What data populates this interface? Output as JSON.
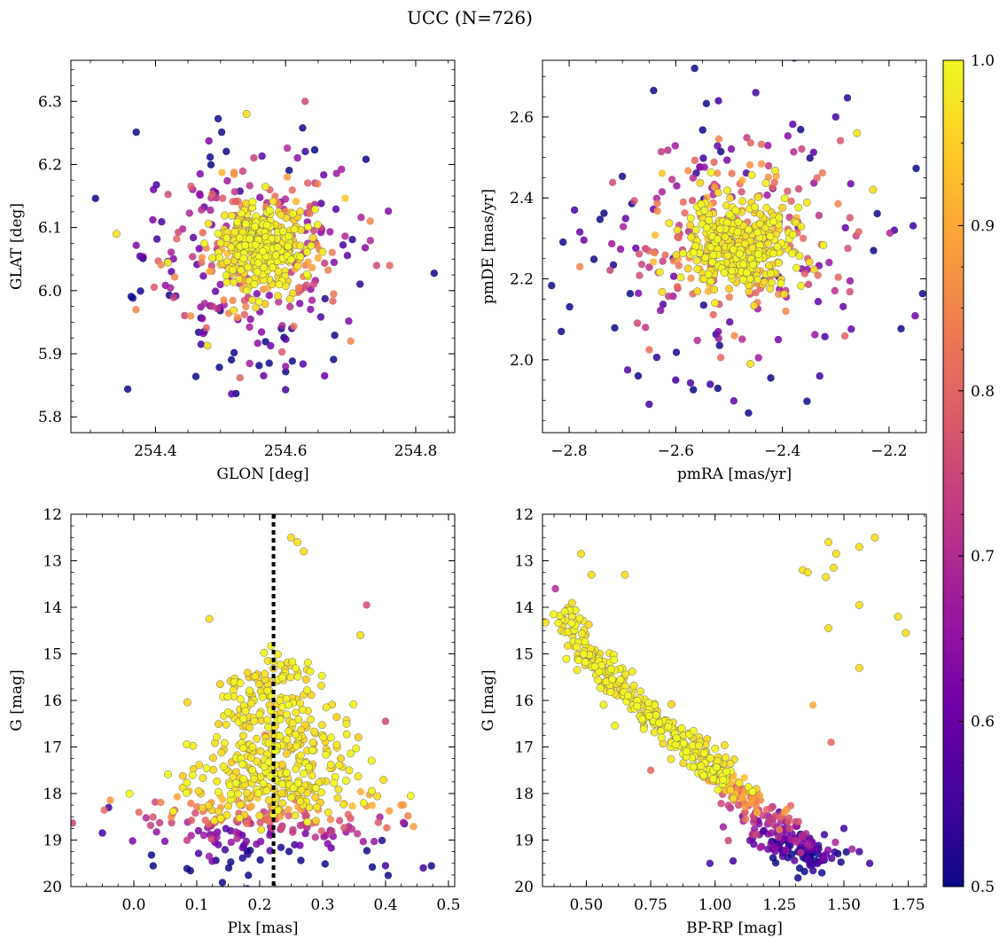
{
  "figure": {
    "title": "UCC (N=726)"
  },
  "colors": {
    "colormap": [
      "#0d0887",
      "#46039f",
      "#7201a8",
      "#9c179e",
      "#bd3786",
      "#d8576b",
      "#ed7953",
      "#fb9f3a",
      "#fdca26",
      "#f0f921"
    ],
    "point_edge": "#6b6b6b",
    "vline": "#000000"
  },
  "colorbar": {
    "min": 0.5,
    "max": 1.0,
    "ticks": [
      "0.5",
      "0.6",
      "0.7",
      "0.8",
      "0.9",
      "1.0"
    ]
  },
  "chart_data": [
    {
      "id": "glon-glat",
      "type": "scatter",
      "xlabel": "GLON [deg]",
      "ylabel": "GLAT [deg]",
      "xlim": [
        254.27,
        254.86
      ],
      "ylim": [
        5.775,
        6.365
      ],
      "xticks": [
        254.4,
        254.6,
        254.8
      ],
      "xtick_labels": [
        "254.4",
        "254.6",
        "254.8"
      ],
      "yticks": [
        5.8,
        5.9,
        6.0,
        6.1,
        6.2,
        6.3
      ],
      "ytick_labels": [
        "5.8",
        "5.9",
        "6.0",
        "6.1",
        "6.2",
        "6.3"
      ],
      "core": {
        "x": 254.56,
        "y": 6.07,
        "sx": 0.035,
        "sy": 0.03,
        "count": 330
      },
      "field": {
        "x": 254.55,
        "y": 6.06,
        "sx": 0.085,
        "sy": 0.085,
        "count": 320
      },
      "points": [
        {
          "x": 254.63,
          "y": 6.3,
          "p": 0.75
        },
        {
          "x": 254.54,
          "y": 6.28,
          "p": 0.97
        },
        {
          "x": 254.6,
          "y": 5.843,
          "p": 0.55
        },
        {
          "x": 254.66,
          "y": 5.865,
          "p": 0.6
        },
        {
          "x": 254.53,
          "y": 5.862,
          "p": 0.8
        },
        {
          "x": 254.74,
          "y": 6.04,
          "p": 0.75
        },
        {
          "x": 254.34,
          "y": 6.09,
          "p": 0.97
        },
        {
          "x": 254.37,
          "y": 5.97,
          "p": 0.85
        },
        {
          "x": 254.47,
          "y": 5.915,
          "p": 0.55
        },
        {
          "x": 254.48,
          "y": 5.913,
          "p": 0.97
        },
        {
          "x": 254.6,
          "y": 5.88,
          "p": 0.65
        },
        {
          "x": 254.7,
          "y": 5.92,
          "p": 0.85
        },
        {
          "x": 254.76,
          "y": 6.04,
          "p": 0.8
        },
        {
          "x": 254.73,
          "y": 6.11,
          "p": 0.85
        }
      ]
    },
    {
      "id": "pmra-pmde",
      "type": "scatter",
      "xlabel": "pmRA [mas/yr]",
      "ylabel": "pmDE [mas/yr]",
      "xlim": [
        -2.85,
        -2.13
      ],
      "ylim": [
        1.82,
        2.74
      ],
      "xticks": [
        -2.8,
        -2.6,
        -2.4,
        -2.2
      ],
      "xtick_labels": [
        "−2.8",
        "−2.6",
        "−2.4",
        "−2.2"
      ],
      "yticks": [
        2.0,
        2.2,
        2.4,
        2.6
      ],
      "ytick_labels": [
        "2.0",
        "2.2",
        "2.4",
        "2.6"
      ],
      "core": {
        "x": -2.48,
        "y": 2.28,
        "sx": 0.05,
        "sy": 0.055,
        "count": 340
      },
      "field": {
        "x": -2.49,
        "y": 2.28,
        "sx": 0.13,
        "sy": 0.16,
        "count": 300
      },
      "points": [
        {
          "x": -2.65,
          "y": 1.89,
          "p": 0.55
        },
        {
          "x": -2.45,
          "y": 2.66,
          "p": 0.55
        },
        {
          "x": -2.79,
          "y": 2.37,
          "p": 0.55
        },
        {
          "x": -2.19,
          "y": 2.32,
          "p": 0.55
        },
        {
          "x": -2.23,
          "y": 2.42,
          "p": 0.97
        },
        {
          "x": -2.78,
          "y": 2.23,
          "p": 0.85
        },
        {
          "x": -2.46,
          "y": 1.99,
          "p": 0.97
        },
        {
          "x": -2.6,
          "y": 1.95,
          "p": 0.55
        },
        {
          "x": -2.33,
          "y": 1.96,
          "p": 0.55
        },
        {
          "x": -2.26,
          "y": 2.56,
          "p": 0.97
        },
        {
          "x": -2.52,
          "y": 2.64,
          "p": 0.55
        },
        {
          "x": -2.3,
          "y": 2.6,
          "p": 0.55
        }
      ]
    },
    {
      "id": "plx-g",
      "type": "scatter",
      "xlabel": "Plx [mas]",
      "ylabel": "G [mag]",
      "xlim": [
        -0.1,
        0.51
      ],
      "ylim": [
        20.0,
        12.0
      ],
      "y_inverted": true,
      "xticks": [
        0.0,
        0.1,
        0.2,
        0.3,
        0.4,
        0.5
      ],
      "xtick_labels": [
        "0.0",
        "0.1",
        "0.2",
        "0.3",
        "0.4",
        "0.5"
      ],
      "yticks": [
        12,
        13,
        14,
        15,
        16,
        17,
        18,
        19,
        20
      ],
      "ytick_labels": [
        "12",
        "13",
        "14",
        "15",
        "16",
        "17",
        "18",
        "19",
        "20"
      ],
      "vline_x": 0.222,
      "core": {
        "x": 0.225,
        "y": 16.8,
        "sx": 0.045,
        "sy": 1.5,
        "count": 380
      },
      "field": {
        "x": 0.2,
        "y": 18.6,
        "sx": 0.11,
        "sy": 0.55,
        "count": 230
      },
      "points": [
        {
          "x": 0.25,
          "y": 12.5,
          "p": 0.97
        },
        {
          "x": 0.27,
          "y": 12.8,
          "p": 0.97
        },
        {
          "x": 0.26,
          "y": 12.6,
          "p": 0.97
        },
        {
          "x": 0.37,
          "y": 13.95,
          "p": 0.75
        },
        {
          "x": 0.46,
          "y": 19.6,
          "p": 0.55
        },
        {
          "x": -0.05,
          "y": 18.85,
          "p": 0.55
        },
        {
          "x": 0.4,
          "y": 16.45,
          "p": 0.75
        },
        {
          "x": 0.4,
          "y": 19.55,
          "p": 0.55
        },
        {
          "x": 0.12,
          "y": 14.25,
          "p": 0.97
        },
        {
          "x": 0.36,
          "y": 14.6,
          "p": 0.97
        },
        {
          "x": 0.43,
          "y": 18.65,
          "p": 0.55
        },
        {
          "x": -0.04,
          "y": 18.3,
          "p": 0.55
        }
      ]
    },
    {
      "id": "bprp-g",
      "type": "scatter",
      "xlabel": "BP-RP [mag]",
      "ylabel": "G [mag]",
      "xlim": [
        0.33,
        1.82
      ],
      "ylim": [
        20.0,
        12.0
      ],
      "y_inverted": true,
      "xticks": [
        0.5,
        0.75,
        1.0,
        1.25,
        1.5,
        1.75
      ],
      "xtick_labels": [
        "0.50",
        "0.75",
        "1.00",
        "1.25",
        "1.50",
        "1.75"
      ],
      "yticks": [
        12,
        13,
        14,
        15,
        16,
        17,
        18,
        19,
        20
      ],
      "ytick_labels": [
        "12",
        "13",
        "14",
        "15",
        "16",
        "17",
        "18",
        "19",
        "20"
      ],
      "sequence": [
        [
          0.4,
          14.0
        ],
        [
          0.5,
          14.9
        ],
        [
          0.6,
          15.6
        ],
        [
          0.75,
          16.3
        ],
        [
          0.9,
          17.0
        ],
        [
          1.0,
          17.5
        ],
        [
          1.1,
          18.0
        ],
        [
          1.2,
          18.6
        ],
        [
          1.3,
          19.1
        ],
        [
          1.4,
          19.5
        ]
      ],
      "points": [
        {
          "x": 1.62,
          "y": 12.5,
          "p": 0.97
        },
        {
          "x": 1.56,
          "y": 12.7,
          "p": 0.97
        },
        {
          "x": 1.44,
          "y": 12.6,
          "p": 0.97
        },
        {
          "x": 1.47,
          "y": 12.85,
          "p": 0.97
        },
        {
          "x": 1.46,
          "y": 13.15,
          "p": 0.97
        },
        {
          "x": 1.34,
          "y": 13.2,
          "p": 0.97
        },
        {
          "x": 1.36,
          "y": 13.25,
          "p": 0.97
        },
        {
          "x": 1.43,
          "y": 13.35,
          "p": 0.97
        },
        {
          "x": 1.56,
          "y": 13.95,
          "p": 0.97
        },
        {
          "x": 1.71,
          "y": 14.2,
          "p": 0.97
        },
        {
          "x": 1.74,
          "y": 14.55,
          "p": 0.97
        },
        {
          "x": 1.44,
          "y": 14.45,
          "p": 0.97
        },
        {
          "x": 1.56,
          "y": 15.3,
          "p": 0.97
        },
        {
          "x": 1.38,
          "y": 16.1,
          "p": 0.9
        },
        {
          "x": 1.45,
          "y": 16.9,
          "p": 0.8
        },
        {
          "x": 1.5,
          "y": 18.75,
          "p": 0.55
        },
        {
          "x": 1.6,
          "y": 19.5,
          "p": 0.55
        },
        {
          "x": 1.56,
          "y": 19.25,
          "p": 0.55
        },
        {
          "x": 0.75,
          "y": 17.5,
          "p": 0.8
        },
        {
          "x": 0.52,
          "y": 13.3,
          "p": 0.97
        },
        {
          "x": 0.48,
          "y": 12.85,
          "p": 0.97
        },
        {
          "x": 0.38,
          "y": 13.6,
          "p": 0.7
        },
        {
          "x": 0.65,
          "y": 13.3,
          "p": 0.97
        },
        {
          "x": 0.98,
          "y": 19.5,
          "p": 0.55
        },
        {
          "x": 1.07,
          "y": 19.45,
          "p": 0.55
        }
      ]
    }
  ]
}
